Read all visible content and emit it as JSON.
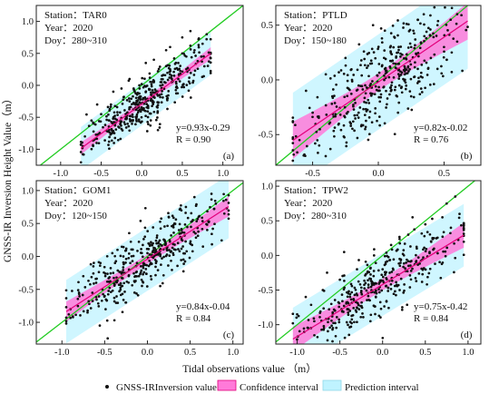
{
  "figure": {
    "y_axis_label": "GNSS-IR Inversion Height Value（m）",
    "x_axis_label": "Tidal observations value （m）",
    "legend": [
      {
        "label": "GNSS-IRInversion value",
        "symbol": "dot"
      },
      {
        "label": "Confidence interval",
        "symbol": "pink-box"
      },
      {
        "label": "Prediction interval",
        "symbol": "cyan-box"
      }
    ]
  },
  "colors": {
    "points": "#111111",
    "fit_line": "#e2007a",
    "confidence_fill": "#ff7ad9",
    "prediction_fill": "#bff3ff",
    "reference_line": "#22cc22"
  },
  "chart_data": [
    {
      "type": "scatter",
      "panel_label": "(a)",
      "station_line": "Station：TAR0",
      "year_line": "Year：2020",
      "doy_line": "Doy：280~310",
      "equation": "y=0.93x-0.29",
      "r_text": "R = 0.90",
      "slope": 0.93,
      "intercept": -0.29,
      "r": 0.9,
      "xlim": [
        -1.3,
        1.25
      ],
      "ylim": [
        -1.25,
        1.25
      ],
      "xticks": [
        -1.0,
        -0.5,
        0.0,
        0.5,
        1.0
      ],
      "yticks": [
        -1.0,
        -0.5,
        0.0,
        0.5,
        1.0
      ],
      "xtick_labels": [
        "-1.0",
        "-0.5",
        "0.0",
        "0.5",
        "1.0"
      ],
      "ytick_labels": [
        "-1.0",
        "-0.5",
        "0.0",
        "0.5",
        "1.0"
      ],
      "x_data_range": [
        -0.75,
        0.85
      ],
      "n_points": 900,
      "points": [
        [
          -0.7,
          -0.8
        ],
        [
          -0.62,
          -0.55
        ],
        [
          -0.5,
          -0.45
        ],
        [
          -0.45,
          -0.62
        ],
        [
          -0.38,
          -0.3
        ],
        [
          -0.3,
          -0.42
        ],
        [
          -0.22,
          -0.18
        ],
        [
          -0.15,
          -0.25
        ],
        [
          -0.1,
          -0.05
        ],
        [
          -0.05,
          -0.12
        ],
        [
          0.0,
          0.02
        ],
        [
          0.05,
          -0.02
        ],
        [
          0.1,
          0.12
        ],
        [
          0.15,
          0.05
        ],
        [
          0.2,
          0.22
        ],
        [
          0.25,
          0.15
        ],
        [
          0.3,
          0.3
        ],
        [
          0.35,
          0.25
        ],
        [
          0.4,
          0.42
        ],
        [
          0.45,
          0.35
        ],
        [
          0.5,
          0.5
        ],
        [
          0.55,
          0.45
        ],
        [
          0.6,
          0.62
        ],
        [
          0.65,
          0.55
        ],
        [
          0.7,
          0.72
        ],
        [
          0.75,
          0.65
        ],
        [
          0.8,
          0.8
        ],
        [
          -0.55,
          -0.3
        ],
        [
          -0.4,
          -0.55
        ],
        [
          -0.25,
          -0.05
        ],
        [
          0.12,
          -0.15
        ],
        [
          0.3,
          0.55
        ],
        [
          0.45,
          0.1
        ],
        [
          0.6,
          0.85
        ],
        [
          -0.6,
          -0.95
        ],
        [
          0.2,
          -0.7
        ],
        [
          0.22,
          -0.66
        ],
        [
          0.5,
          0.75
        ],
        [
          0.35,
          0.6
        ],
        [
          -0.35,
          -0.1
        ],
        [
          0.05,
          0.35
        ],
        [
          0.15,
          0.4
        ],
        [
          -0.15,
          0.1
        ],
        [
          0.28,
          0.05
        ],
        [
          0.4,
          0.15
        ],
        [
          -0.05,
          -0.35
        ]
      ]
    },
    {
      "type": "scatter",
      "panel_label": "(b)",
      "station_line": "Station：PTLD",
      "year_line": "Year：2020",
      "doy_line": "Doy：150~180",
      "equation": "y=0.82x-0.02",
      "r_text": "R = 0.76",
      "slope": 0.82,
      "intercept": -0.02,
      "r": 0.76,
      "xlim": [
        -0.78,
        0.78
      ],
      "ylim": [
        -0.78,
        0.68
      ],
      "xticks": [
        -0.5,
        0.0,
        0.5
      ],
      "yticks": [
        -0.5,
        0.0,
        0.5
      ],
      "xtick_labels": [
        "-0.5",
        "0.0",
        "0.5"
      ],
      "ytick_labels": [
        "-0.5",
        "0.0",
        "0.5"
      ],
      "x_data_range": [
        -0.65,
        0.68
      ],
      "n_points": 420,
      "points": [
        [
          -0.6,
          -0.55
        ],
        [
          -0.5,
          -0.3
        ],
        [
          -0.45,
          -0.6
        ],
        [
          -0.35,
          -0.15
        ],
        [
          -0.3,
          -0.4
        ],
        [
          -0.2,
          0.0
        ],
        [
          -0.15,
          -0.3
        ],
        [
          -0.1,
          -0.05
        ],
        [
          -0.05,
          0.15
        ],
        [
          0.0,
          -0.1
        ],
        [
          0.05,
          0.1
        ],
        [
          0.1,
          -0.05
        ],
        [
          0.15,
          0.25
        ],
        [
          0.2,
          0.05
        ],
        [
          0.25,
          0.3
        ],
        [
          0.3,
          0.1
        ],
        [
          0.35,
          0.4
        ],
        [
          0.4,
          0.2
        ],
        [
          0.45,
          0.5
        ],
        [
          0.5,
          0.3
        ],
        [
          0.55,
          0.55
        ],
        [
          0.6,
          0.35
        ],
        [
          -0.25,
          0.2
        ],
        [
          0.15,
          -0.3
        ],
        [
          0.3,
          0.55
        ],
        [
          -0.4,
          0.05
        ],
        [
          0.05,
          0.45
        ],
        [
          0.25,
          -0.15
        ],
        [
          -0.1,
          -0.45
        ],
        [
          0.45,
          0.1
        ],
        [
          0.6,
          0.6
        ],
        [
          -0.55,
          -0.1
        ]
      ]
    },
    {
      "type": "scatter",
      "panel_label": "(c)",
      "station_line": "Station：GOM1",
      "year_line": "Year：2020",
      "doy_line": "Doy：120~150",
      "equation": "y=0.84x-0.04",
      "r_text": "R = 0.84",
      "slope": 0.84,
      "intercept": -0.04,
      "r": 0.84,
      "xlim": [
        -1.3,
        1.12
      ],
      "ylim": [
        -1.33,
        1.15
      ],
      "xticks": [
        -1.0,
        -0.5,
        0.0,
        0.5,
        1.0
      ],
      "yticks": [
        -1.0,
        -0.5,
        0.0,
        0.5,
        1.0
      ],
      "xtick_labels": [
        "-1.0",
        "-0.5",
        "0.0",
        "0.5",
        "1.0"
      ],
      "ytick_labels": [
        "-1.0",
        "-0.5",
        "0.0",
        "0.5",
        "1.0"
      ],
      "x_data_range": [
        -0.95,
        0.95
      ],
      "n_points": 650,
      "points": [
        [
          -0.9,
          -0.8
        ],
        [
          -0.8,
          -0.55
        ],
        [
          -0.7,
          -0.85
        ],
        [
          -0.6,
          -0.4
        ],
        [
          -0.5,
          -0.6
        ],
        [
          -0.4,
          -0.25
        ],
        [
          -0.3,
          -0.45
        ],
        [
          -0.2,
          -0.1
        ],
        [
          -0.1,
          -0.3
        ],
        [
          0.0,
          0.05
        ],
        [
          0.1,
          -0.1
        ],
        [
          0.2,
          0.25
        ],
        [
          0.3,
          0.05
        ],
        [
          0.4,
          0.4
        ],
        [
          0.5,
          0.2
        ],
        [
          0.6,
          0.6
        ],
        [
          0.7,
          0.4
        ],
        [
          0.8,
          0.8
        ],
        [
          0.9,
          0.65
        ],
        [
          -0.55,
          -0.1
        ],
        [
          0.15,
          -0.45
        ],
        [
          0.45,
          0.75
        ],
        [
          -0.25,
          -0.7
        ],
        [
          0.75,
          0.95
        ],
        [
          0.25,
          0.6
        ],
        [
          -0.75,
          -0.3
        ],
        [
          0.65,
          0.15
        ],
        [
          -0.35,
          0.1
        ],
        [
          0.55,
          0.9
        ],
        [
          -0.15,
          -0.55
        ]
      ]
    },
    {
      "type": "scatter",
      "panel_label": "(d)",
      "station_line": "Station：TPW2",
      "year_line": "Year：2020",
      "doy_line": "Doy：280~310",
      "equation": "y=0.75x-0.42",
      "r_text": "R = 0.84",
      "slope": 0.75,
      "intercept": -0.42,
      "r": 0.84,
      "xlim": [
        -1.25,
        1.15
      ],
      "ylim": [
        -1.28,
        1.08
      ],
      "xticks": [
        -1.0,
        -0.5,
        0.0,
        0.5,
        1.0
      ],
      "yticks": [
        -1.0,
        -0.5,
        0.0,
        0.5,
        1.0
      ],
      "xtick_labels": [
        "-1.0",
        "-0.5",
        "0.0",
        "0.5",
        "1.0"
      ],
      "ytick_labels": [
        "-1.0",
        "-0.5",
        "0.0",
        "0.5",
        "1.0"
      ],
      "x_data_range": [
        -1.05,
        0.95
      ],
      "n_points": 400,
      "points": [
        [
          -1.0,
          -0.85
        ],
        [
          -0.9,
          -0.6
        ],
        [
          -0.8,
          -0.95
        ],
        [
          -0.7,
          -0.5
        ],
        [
          -0.6,
          -0.7
        ],
        [
          -0.5,
          -0.35
        ],
        [
          -0.4,
          -0.55
        ],
        [
          -0.3,
          -0.2
        ],
        [
          -0.2,
          -0.4
        ],
        [
          -0.1,
          0.0
        ],
        [
          0.0,
          -0.2
        ],
        [
          0.1,
          0.15
        ],
        [
          0.2,
          -0.05
        ],
        [
          0.3,
          0.3
        ],
        [
          0.4,
          0.1
        ],
        [
          0.5,
          0.45
        ],
        [
          0.6,
          0.25
        ],
        [
          0.7,
          0.55
        ],
        [
          0.8,
          0.4
        ],
        [
          0.9,
          0.6
        ],
        [
          -0.65,
          -0.25
        ],
        [
          0.35,
          0.55
        ],
        [
          -0.15,
          -0.65
        ],
        [
          0.75,
          0.75
        ],
        [
          0.2,
          -0.5
        ],
        [
          -0.45,
          0.05
        ],
        [
          0.55,
          0.05
        ],
        [
          0.85,
          0.85
        ]
      ]
    }
  ]
}
